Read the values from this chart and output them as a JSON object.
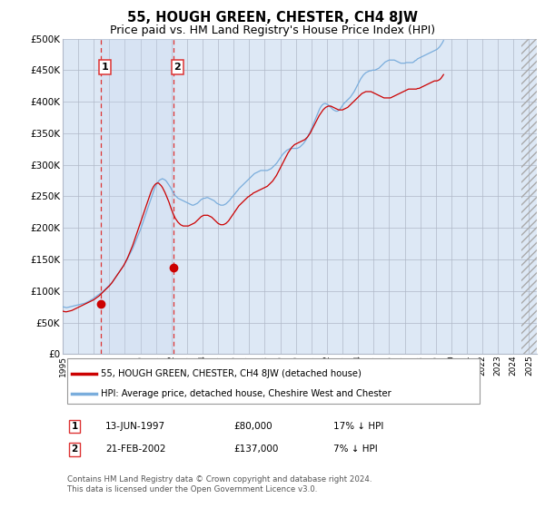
{
  "title": "55, HOUGH GREEN, CHESTER, CH4 8JW",
  "subtitle": "Price paid vs. HM Land Registry's House Price Index (HPI)",
  "title_fontsize": 10.5,
  "subtitle_fontsize": 9,
  "xlim_start": 1995.0,
  "xlim_end": 2025.5,
  "ylim_min": 0,
  "ylim_max": 500000,
  "ytick_step": 50000,
  "background_color": "#ffffff",
  "plot_bg_color": "#dde8f5",
  "grid_color": "#b0b8c8",
  "sales": [
    {
      "label": "1",
      "date_num": 1997.45,
      "price": 80000
    },
    {
      "label": "2",
      "date_num": 2002.13,
      "price": 137000
    }
  ],
  "legend_color1": "#cc0000",
  "legend_color2": "#7aaddc",
  "legend_line1": "55, HOUGH GREEN, CHESTER, CH4 8JW (detached house)",
  "legend_line2": "HPI: Average price, detached house, Cheshire West and Chester",
  "table_entries": [
    {
      "num": "1",
      "date": "13-JUN-1997",
      "price": "£80,000",
      "hpi": "17% ↓ HPI"
    },
    {
      "num": "2",
      "date": "21-FEB-2002",
      "price": "£137,000",
      "hpi": "7% ↓ HPI"
    }
  ],
  "footnote": "Contains HM Land Registry data © Crown copyright and database right 2024.\nThis data is licensed under the Open Government Licence v3.0.",
  "hpi_months": [
    75000,
    74500,
    74000,
    73500,
    74000,
    74500,
    75000,
    75500,
    76000,
    76500,
    77000,
    77500,
    78000,
    78500,
    79000,
    79500,
    80000,
    80500,
    81500,
    82500,
    83500,
    84500,
    86000,
    87000,
    88500,
    90000,
    91500,
    93000,
    94500,
    96000,
    97500,
    99000,
    101000,
    103000,
    105000,
    107000,
    109000,
    111000,
    113000,
    116000,
    119000,
    122000,
    125000,
    128000,
    131000,
    134000,
    137000,
    140000,
    143000,
    147000,
    151000,
    155000,
    159000,
    163000,
    167000,
    172000,
    177000,
    182000,
    187000,
    192000,
    197000,
    203000,
    209000,
    215000,
    221000,
    227000,
    233000,
    239000,
    245000,
    251000,
    257000,
    263000,
    267000,
    271000,
    274000,
    276000,
    277000,
    278000,
    277000,
    276000,
    274000,
    271000,
    268000,
    265000,
    261000,
    257000,
    254000,
    251000,
    249000,
    247000,
    246000,
    245000,
    244000,
    243000,
    242000,
    241000,
    240000,
    239000,
    238000,
    237000,
    236000,
    236000,
    237000,
    238000,
    239000,
    241000,
    243000,
    245000,
    246000,
    247000,
    247000,
    248000,
    248000,
    247000,
    246000,
    245000,
    244000,
    243000,
    241000,
    239000,
    238000,
    237000,
    236000,
    236000,
    236000,
    237000,
    238000,
    240000,
    242000,
    244000,
    247000,
    249000,
    252000,
    254000,
    257000,
    259000,
    262000,
    264000,
    266000,
    268000,
    270000,
    272000,
    274000,
    276000,
    278000,
    280000,
    282000,
    284000,
    286000,
    287000,
    288000,
    289000,
    290000,
    291000,
    291000,
    291000,
    291000,
    291000,
    291000,
    292000,
    293000,
    294000,
    296000,
    298000,
    300000,
    302000,
    305000,
    308000,
    311000,
    314000,
    317000,
    319000,
    321000,
    323000,
    324000,
    325000,
    326000,
    326000,
    326000,
    326000,
    326000,
    326000,
    327000,
    328000,
    330000,
    332000,
    334000,
    337000,
    340000,
    344000,
    348000,
    352000,
    357000,
    362000,
    367000,
    372000,
    377000,
    382000,
    387000,
    391000,
    394000,
    396000,
    397000,
    397000,
    396000,
    395000,
    393000,
    391000,
    389000,
    387000,
    386000,
    385000,
    385000,
    386000,
    388000,
    391000,
    394000,
    397000,
    399000,
    401000,
    403000,
    405000,
    407000,
    410000,
    413000,
    416000,
    420000,
    424000,
    428000,
    432000,
    436000,
    439000,
    442000,
    444000,
    446000,
    447000,
    448000,
    449000,
    449000,
    450000,
    450000,
    450000,
    451000,
    452000,
    453000,
    455000,
    457000,
    459000,
    461000,
    463000,
    464000,
    465000,
    466000,
    466000,
    466000,
    466000,
    466000,
    465000,
    464000,
    463000,
    462000,
    461000,
    461000,
    461000,
    461000,
    462000,
    462000,
    462000,
    462000,
    462000,
    462000,
    463000,
    465000,
    466000,
    468000,
    469000,
    470000,
    471000,
    472000,
    473000,
    474000,
    475000,
    476000,
    477000,
    478000,
    479000,
    480000,
    481000,
    482000,
    483000,
    485000,
    487000,
    490000,
    493000,
    497000
  ],
  "price_months": [
    68000,
    67500,
    67000,
    67000,
    67500,
    68000,
    68500,
    69000,
    70000,
    71000,
    72000,
    73000,
    74000,
    75000,
    76000,
    77000,
    78000,
    79000,
    80000,
    81000,
    82000,
    83000,
    84000,
    85000,
    86000,
    87500,
    89000,
    90500,
    92000,
    94000,
    96000,
    98000,
    100000,
    102000,
    104000,
    106000,
    108000,
    110500,
    113000,
    116000,
    119000,
    122000,
    125000,
    128000,
    131000,
    134000,
    137000,
    140000,
    144000,
    148000,
    152000,
    157000,
    162000,
    167000,
    172000,
    178000,
    184000,
    190000,
    196000,
    202000,
    208000,
    214000,
    220000,
    226000,
    232000,
    238000,
    244000,
    250000,
    256000,
    261000,
    265000,
    268000,
    270000,
    271000,
    271000,
    269000,
    267000,
    264000,
    260000,
    256000,
    251000,
    246000,
    241000,
    235000,
    229000,
    224000,
    219000,
    215000,
    212000,
    209000,
    207000,
    205000,
    204000,
    203000,
    203000,
    203000,
    203000,
    203000,
    204000,
    205000,
    206000,
    207000,
    208000,
    210000,
    212000,
    214000,
    216000,
    218000,
    219000,
    220000,
    220000,
    220000,
    220000,
    219000,
    218000,
    217000,
    215000,
    213000,
    211000,
    209000,
    207000,
    206000,
    205000,
    205000,
    205000,
    206000,
    207000,
    209000,
    211000,
    214000,
    217000,
    220000,
    223000,
    226000,
    229000,
    232000,
    235000,
    237000,
    239000,
    241000,
    243000,
    245000,
    247000,
    249000,
    250000,
    252000,
    253000,
    255000,
    256000,
    257000,
    258000,
    259000,
    260000,
    261000,
    262000,
    263000,
    264000,
    265000,
    266000,
    268000,
    270000,
    272000,
    274000,
    277000,
    280000,
    283000,
    287000,
    291000,
    295000,
    299000,
    303000,
    307000,
    311000,
    315000,
    319000,
    322000,
    325000,
    328000,
    330000,
    332000,
    333000,
    334000,
    335000,
    336000,
    337000,
    338000,
    339000,
    340000,
    342000,
    344000,
    347000,
    350000,
    354000,
    358000,
    362000,
    366000,
    370000,
    374000,
    378000,
    381000,
    384000,
    387000,
    389000,
    391000,
    392000,
    393000,
    393000,
    393000,
    392000,
    391000,
    390000,
    389000,
    388000,
    387000,
    387000,
    387000,
    387000,
    388000,
    389000,
    390000,
    391000,
    393000,
    395000,
    397000,
    399000,
    401000,
    403000,
    405000,
    407000,
    409000,
    411000,
    413000,
    414000,
    415000,
    416000,
    416000,
    416000,
    416000,
    416000,
    415000,
    414000,
    413000,
    412000,
    411000,
    410000,
    409000,
    408000,
    407000,
    406000,
    406000,
    406000,
    406000,
    406000,
    406000,
    407000,
    408000,
    409000,
    410000,
    411000,
    412000,
    413000,
    414000,
    415000,
    416000,
    417000,
    418000,
    419000,
    420000,
    420000,
    420000,
    420000,
    420000,
    420000,
    420000,
    421000,
    421000,
    422000,
    423000,
    424000,
    425000,
    426000,
    427000,
    428000,
    429000,
    430000,
    431000,
    432000,
    433000,
    433000,
    433000,
    434000,
    435000,
    437000,
    440000,
    443000
  ]
}
